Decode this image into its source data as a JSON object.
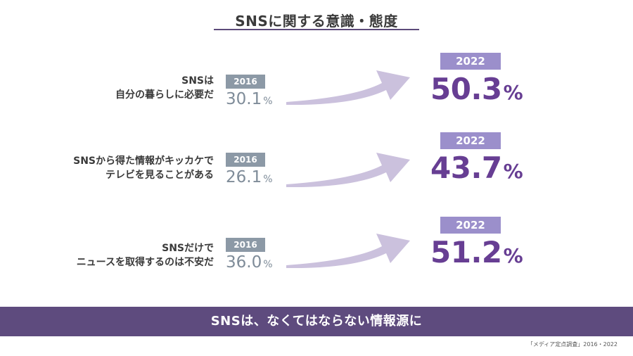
{
  "title": "SNSに関する意識・態度",
  "chart_data": {
    "type": "comparison",
    "unit": "%",
    "year_from": "2016",
    "year_to": "2022",
    "items": [
      {
        "label_line1": "SNSは",
        "label_line2": "自分の暮らしに必要だ",
        "value_2016": "30.1",
        "value_2022": "50.3"
      },
      {
        "label_line1": "SNSから得た情報がキッカケで",
        "label_line2": "テレビを見ることがある",
        "value_2016": "26.1",
        "value_2022": "43.7"
      },
      {
        "label_line1": "SNSだけで",
        "label_line2": "ニュースを取得するのは不安だ",
        "value_2016": "36.0",
        "value_2022": "51.2"
      }
    ]
  },
  "banner": "SNSは、なくてはならない情報源に",
  "source": "「メディア定点調査」2016・2022",
  "colors": {
    "accent_purple": "#673e93",
    "badge_2022": "#9b8fcb",
    "badge_2016": "#8c99a6",
    "arrow": "#cbc1dd",
    "banner": "#5e4b7e"
  }
}
